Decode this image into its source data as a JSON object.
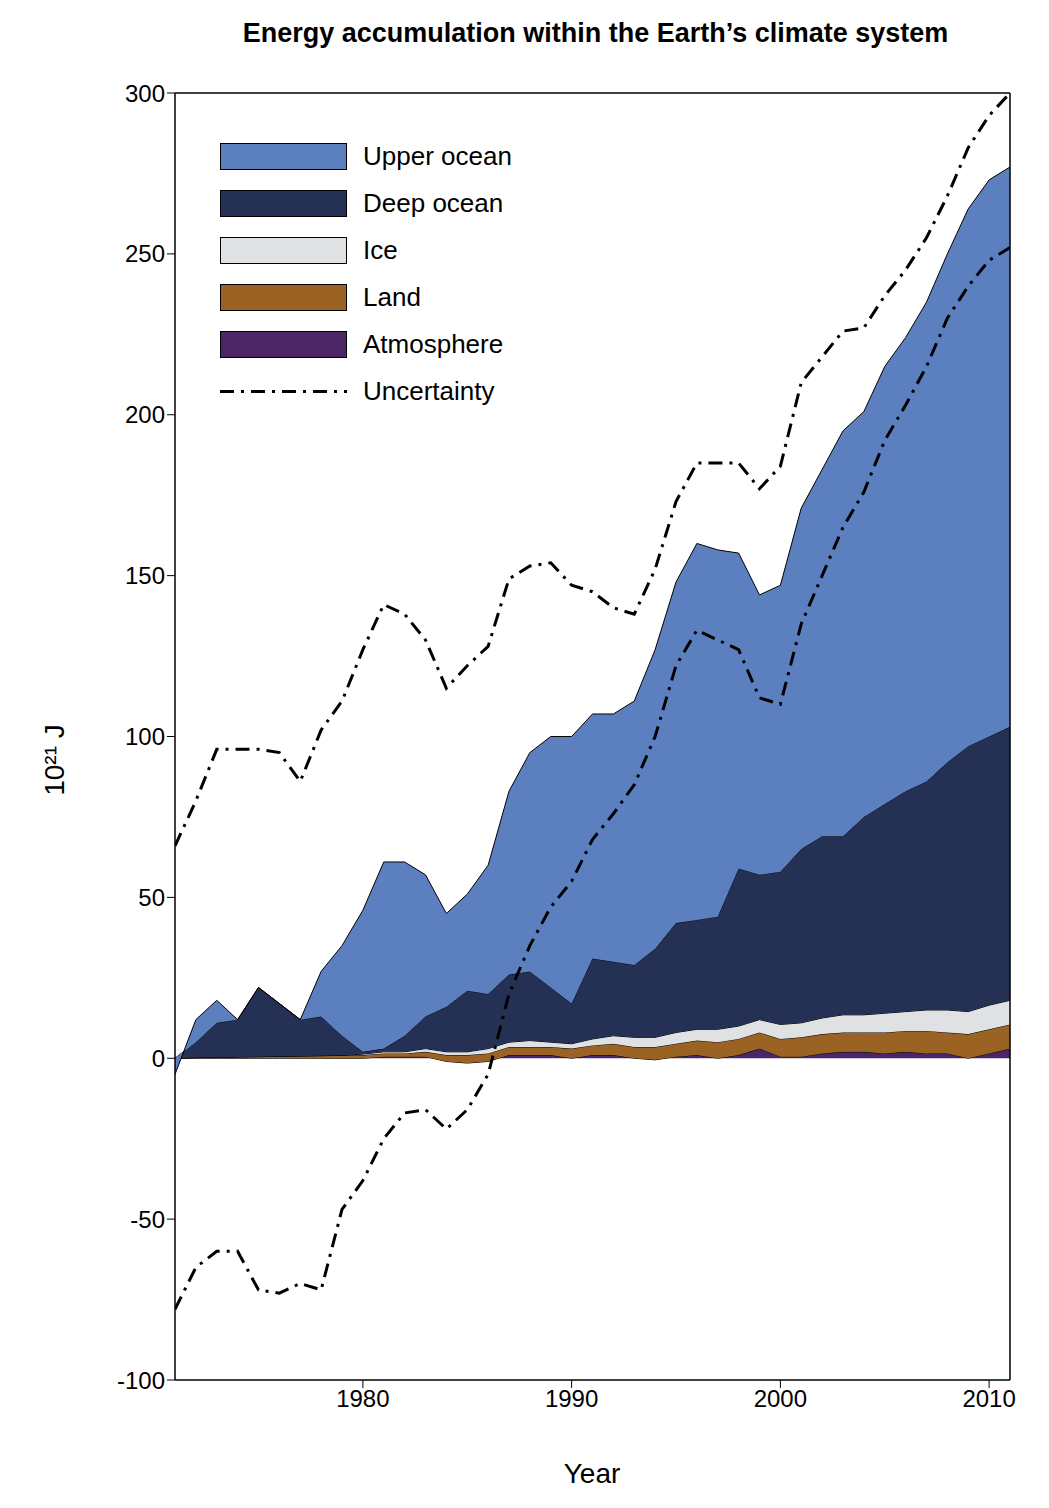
{
  "chart_data": {
    "type": "area",
    "title": "Energy accumulation within the Earth’s climate system",
    "x_label": "Year",
    "y_label": "10²¹ J",
    "stacked": true,
    "legend": "upper left",
    "grid": false,
    "x": [
      1971,
      1972,
      1973,
      1974,
      1975,
      1976,
      1977,
      1978,
      1979,
      1980,
      1981,
      1982,
      1983,
      1984,
      1985,
      1986,
      1987,
      1988,
      1989,
      1990,
      1991,
      1992,
      1993,
      1994,
      1995,
      1996,
      1997,
      1998,
      1999,
      2000,
      2001,
      2002,
      2003,
      2004,
      2005,
      2006,
      2007,
      2008,
      2009,
      2010,
      2011
    ],
    "xlim": [
      1971,
      2011
    ],
    "xticks": [
      1980,
      1990,
      2000,
      2010
    ],
    "ylim": [
      -100,
      300
    ],
    "yticks": [
      -100,
      -50,
      0,
      50,
      100,
      150,
      200,
      250,
      300
    ],
    "series": [
      {
        "name": "Upper ocean",
        "color": "#5b7fbf",
        "values": [
          -5,
          7,
          7,
          0,
          0,
          0,
          0,
          14,
          28,
          44,
          58,
          54,
          44,
          29,
          30,
          40,
          57,
          68,
          78,
          83,
          76,
          77,
          82,
          93,
          106,
          117,
          114,
          98,
          87,
          89,
          106,
          114,
          126,
          126,
          136,
          141,
          149,
          158,
          167,
          173,
          174
        ]
      },
      {
        "name": "Deep ocean",
        "color": "#243154",
        "values": [
          0,
          4.8,
          10.7,
          11.6,
          21.5,
          16.4,
          11.3,
          12.2,
          6.1,
          0.7,
          1,
          5,
          10,
          14,
          19,
          17,
          21,
          21.5,
          17,
          12.5,
          25,
          23,
          22.5,
          27.5,
          34,
          34,
          35,
          49,
          45,
          47.5,
          54,
          56.5,
          55.5,
          61.5,
          65,
          68.5,
          71,
          77,
          82.5,
          83.5,
          85
        ]
      },
      {
        "name": "Ice",
        "color": "#e0e1e2",
        "values": [
          0,
          0,
          0,
          0,
          0,
          0,
          0,
          0,
          0,
          0.3,
          0.5,
          0.5,
          1,
          1,
          1,
          1.5,
          1.5,
          2,
          1.5,
          1.5,
          2,
          2.5,
          3,
          3,
          3.5,
          3.5,
          4,
          4,
          4,
          4.5,
          4.5,
          5,
          5.5,
          5.5,
          6,
          6,
          6.5,
          7,
          7,
          7.5,
          7.5
        ]
      },
      {
        "name": "Land",
        "color": "#9b6323",
        "values": [
          0,
          0.2,
          0.3,
          0.4,
          0.5,
          0.6,
          0.7,
          0.8,
          0.9,
          1,
          1,
          1,
          1.5,
          2,
          2.5,
          2.5,
          2.5,
          2.5,
          2.5,
          3,
          3,
          3.5,
          3.5,
          4,
          4,
          4.5,
          5,
          5,
          5,
          5.5,
          6,
          6,
          6,
          6,
          6.5,
          6.5,
          7,
          6.5,
          7.5,
          7.5,
          7.5
        ]
      },
      {
        "name": "Atmosphere",
        "color": "#4b2566",
        "values": [
          0,
          0,
          0,
          0,
          0,
          0,
          0,
          0,
          0,
          0,
          0.5,
          0.5,
          0.5,
          -1,
          -1.5,
          -1,
          1,
          1,
          1,
          0,
          1,
          1,
          0,
          -0.5,
          0.5,
          1,
          0,
          1,
          3,
          0.5,
          0.5,
          1.5,
          2,
          2,
          1.5,
          2,
          1.5,
          1.5,
          0,
          1.5,
          3
        ]
      },
      {
        "name": "Uncertainty",
        "type": "line",
        "line_style": "dashdot",
        "color": "#000000",
        "upper": [
          66,
          80,
          96,
          96,
          96,
          95,
          86,
          102,
          111,
          127,
          141,
          138,
          130,
          115,
          122,
          128,
          149,
          153,
          154,
          147,
          145,
          140,
          138,
          152,
          173,
          185,
          185,
          185,
          177,
          184,
          210,
          218,
          226,
          227,
          237,
          245,
          255,
          268,
          283,
          293,
          300
        ],
        "lower": [
          -78,
          -65,
          -60,
          -60,
          -72,
          -73,
          -70,
          -72,
          -47,
          -38,
          -25,
          -17,
          -16,
          -22,
          -16,
          -5,
          20,
          35,
          47,
          55,
          68,
          76,
          85,
          100,
          122,
          133,
          130,
          127,
          112,
          110,
          135,
          150,
          165,
          176,
          192,
          203,
          215,
          230,
          240,
          248,
          252
        ]
      }
    ]
  }
}
